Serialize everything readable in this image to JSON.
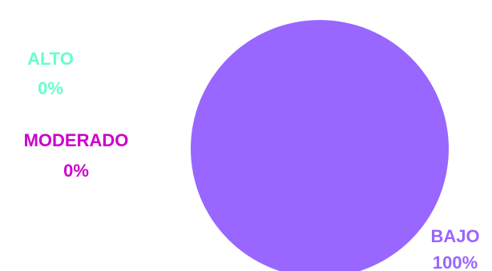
{
  "chart_data": {
    "type": "pie",
    "categories": [
      "ALTO",
      "MODERADO",
      "BAJO"
    ],
    "values": [
      0,
      0,
      100
    ],
    "data_labels": [
      "0%",
      "0%",
      "100%"
    ],
    "colors": [
      "#66ffcc",
      "#cc00cc",
      "#9966ff"
    ],
    "title": "",
    "legend": "none"
  }
}
